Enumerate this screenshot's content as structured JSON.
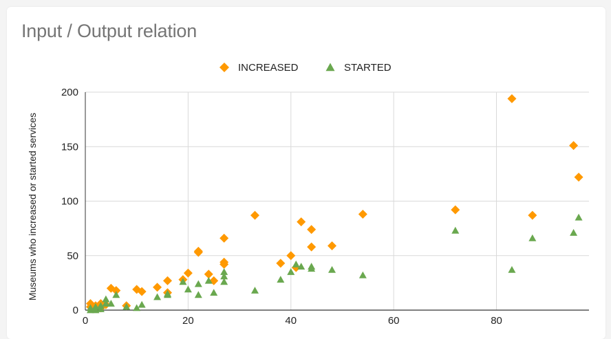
{
  "chart_data": {
    "type": "scatter",
    "title": "Input / Output relation",
    "xlabel": "",
    "ylabel": "Museums who increased or started services",
    "xlim": [
      0,
      98
    ],
    "ylim": [
      0,
      200
    ],
    "x_ticks": [
      0,
      20,
      40,
      60,
      80
    ],
    "y_ticks": [
      0,
      50,
      100,
      150,
      200
    ],
    "grid": true,
    "legend_position": "top",
    "series": [
      {
        "name": "INCREASED",
        "color": "#ff9900",
        "marker": "diamond",
        "points": [
          [
            1,
            6
          ],
          [
            1,
            3
          ],
          [
            2,
            4
          ],
          [
            3,
            6
          ],
          [
            3,
            2
          ],
          [
            4,
            5
          ],
          [
            5,
            20
          ],
          [
            6,
            18
          ],
          [
            8,
            4
          ],
          [
            10,
            19
          ],
          [
            11,
            17
          ],
          [
            14,
            21
          ],
          [
            16,
            27
          ],
          [
            16,
            16
          ],
          [
            19,
            28
          ],
          [
            20,
            34
          ],
          [
            22,
            54
          ],
          [
            22,
            53
          ],
          [
            24,
            33
          ],
          [
            25,
            27
          ],
          [
            27,
            66
          ],
          [
            27,
            44
          ],
          [
            27,
            42
          ],
          [
            33,
            87
          ],
          [
            38,
            43
          ],
          [
            40,
            50
          ],
          [
            41,
            39
          ],
          [
            42,
            81
          ],
          [
            44,
            74
          ],
          [
            44,
            58
          ],
          [
            48,
            59
          ],
          [
            54,
            88
          ],
          [
            72,
            92
          ],
          [
            83,
            194
          ],
          [
            87,
            87
          ],
          [
            95,
            151
          ],
          [
            96,
            122
          ]
        ]
      },
      {
        "name": "STARTED",
        "color": "#6aa84f",
        "marker": "triangle",
        "points": [
          [
            1,
            2
          ],
          [
            1,
            0
          ],
          [
            2,
            3
          ],
          [
            2,
            0
          ],
          [
            3,
            4
          ],
          [
            3,
            1
          ],
          [
            4,
            10
          ],
          [
            4,
            6
          ],
          [
            5,
            6
          ],
          [
            6,
            14
          ],
          [
            8,
            3
          ],
          [
            10,
            2
          ],
          [
            11,
            5
          ],
          [
            14,
            12
          ],
          [
            16,
            14
          ],
          [
            16,
            15
          ],
          [
            19,
            26
          ],
          [
            20,
            19
          ],
          [
            22,
            24
          ],
          [
            22,
            14
          ],
          [
            24,
            27
          ],
          [
            25,
            16
          ],
          [
            27,
            35
          ],
          [
            27,
            31
          ],
          [
            27,
            26
          ],
          [
            33,
            18
          ],
          [
            38,
            28
          ],
          [
            40,
            35
          ],
          [
            41,
            42
          ],
          [
            42,
            40
          ],
          [
            44,
            40
          ],
          [
            44,
            38
          ],
          [
            48,
            37
          ],
          [
            54,
            32
          ],
          [
            72,
            73
          ],
          [
            83,
            37
          ],
          [
            87,
            66
          ],
          [
            95,
            71
          ],
          [
            96,
            85
          ]
        ]
      }
    ]
  }
}
